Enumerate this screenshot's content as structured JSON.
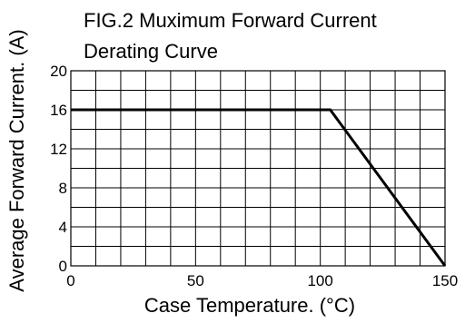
{
  "chart_data": {
    "type": "line",
    "title": "FIG.2 Muximum Forward Current\nDerating  Curve",
    "title_lines": [
      "FIG.2 Muximum Forward Current",
      "Derating  Curve"
    ],
    "xlabel": "Case Temperature. (°C)",
    "ylabel": "Average Forward Current. (A)",
    "xlim": [
      0,
      150
    ],
    "ylim": [
      0,
      20
    ],
    "x_ticks": [
      0,
      50,
      100,
      150
    ],
    "x_tick_labels": [
      "0",
      "50",
      "100",
      "150"
    ],
    "y_ticks": [
      0,
      4,
      8,
      12,
      16,
      20
    ],
    "y_tick_labels": [
      "0",
      "4",
      "8",
      "12",
      "16",
      "20"
    ],
    "grid": true,
    "grid_x_step": 10,
    "grid_y_step": 2,
    "series": [
      {
        "x": [
          0,
          104,
          150
        ],
        "y": [
          16,
          16,
          0
        ]
      }
    ],
    "colors": {
      "line": "#000000",
      "grid": "#000000",
      "background": "#ffffff"
    }
  }
}
